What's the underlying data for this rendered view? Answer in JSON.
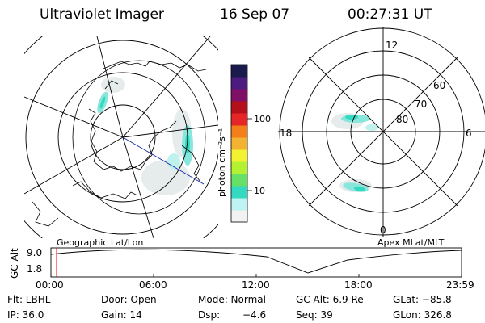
{
  "header": {
    "instrument": "Ultraviolet Imager",
    "date": "16 Sep 07",
    "time": "00:27:31 UT"
  },
  "colorbar": {
    "unit_label": "photon cm⁻²s⁻¹",
    "ticks": [
      "100",
      "10"
    ],
    "colors": [
      "#f2f2f2",
      "#bff2f2",
      "#33d9c0",
      "#66e066",
      "#b3f233",
      "#f2f233",
      "#f2b333",
      "#f27f19",
      "#e62626",
      "#b3101a",
      "#7f1066",
      "#4d1a80",
      "#1a1a4d"
    ]
  },
  "right_polar": {
    "top_label": "12",
    "bottom_label": "0",
    "left_label": "18",
    "right_label": "6",
    "ring_labels": [
      "60",
      "70",
      "80"
    ]
  },
  "left_caption": "Geographic Lat/Lon",
  "right_caption": "Apex MLat/MLT",
  "altitude_panel": {
    "ylabel": "GC Alt",
    "top_tick": "9.0",
    "bottom_tick": "1.8",
    "xticks": [
      "00:00",
      "06:00",
      "12:00",
      "18:00",
      "23:59"
    ],
    "marker_color": "#ff0000"
  },
  "info": {
    "filter": "Flt: LBHL",
    "door": "Door: Open",
    "mode": "Mode: Normal",
    "gc_alt": "GC Alt: 6.9 Re",
    "glat": "GLat: −85.8",
    "ip": "IP: 36.0",
    "gain": "Gain: 14",
    "dsp_label": "Dsp:",
    "dsp_value": "−4.6",
    "seq": "Seq: 39",
    "glon": "GLon: 326.8"
  }
}
